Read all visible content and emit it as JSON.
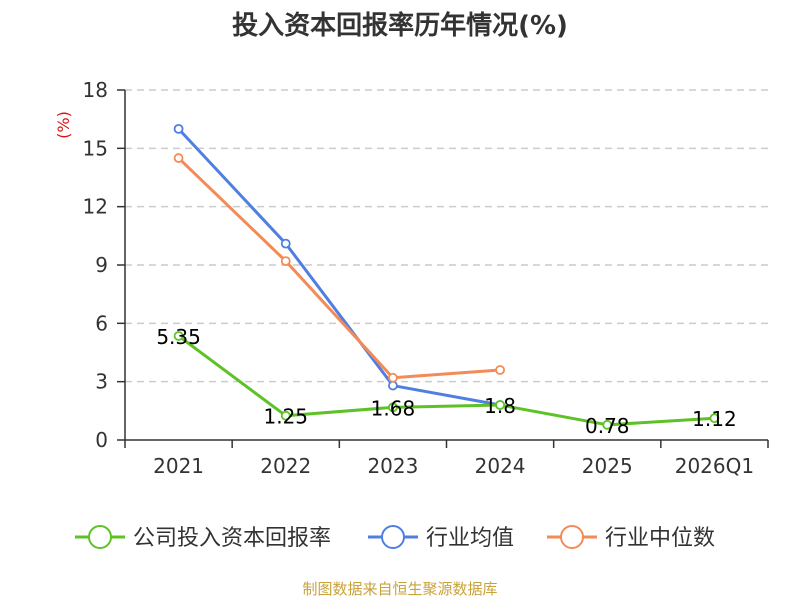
{
  "title": "投入资本回报率历年情况(%)",
  "source": "制图数据来自恒生聚源数据库",
  "colors": {
    "company": "#5dc226",
    "industry_avg": "#4f7fe0",
    "industry_median": "#f48b56",
    "ylabel": "#dd1111",
    "source": "#c9a23a",
    "grid": "#cccccc",
    "axis": "#333333"
  },
  "chart_data": {
    "type": "line",
    "title": "投入资本回报率历年情况(%)",
    "ylabel": "(%)",
    "categories": [
      "2021",
      "2022",
      "2023",
      "2024",
      "2025",
      "2026Q1"
    ],
    "ylim": [
      0,
      18
    ],
    "yticks": [
      0,
      3,
      6,
      9,
      12,
      15,
      18
    ],
    "grid": true,
    "legend_position": "bottom",
    "series": [
      {
        "name": "公司投入资本回报率",
        "key": "company",
        "values": [
          5.35,
          1.25,
          1.68,
          1.8,
          0.78,
          1.12
        ],
        "labels": [
          "5.35",
          "1.25",
          "1.68",
          "1.8",
          "0.78",
          "1.12"
        ]
      },
      {
        "name": "行业均值",
        "key": "industry_avg",
        "values": [
          16.0,
          10.1,
          2.8,
          1.8,
          null,
          null
        ]
      },
      {
        "name": "行业中位数",
        "key": "industry_median",
        "values": [
          14.5,
          9.2,
          3.2,
          3.6,
          null,
          null
        ]
      }
    ]
  }
}
